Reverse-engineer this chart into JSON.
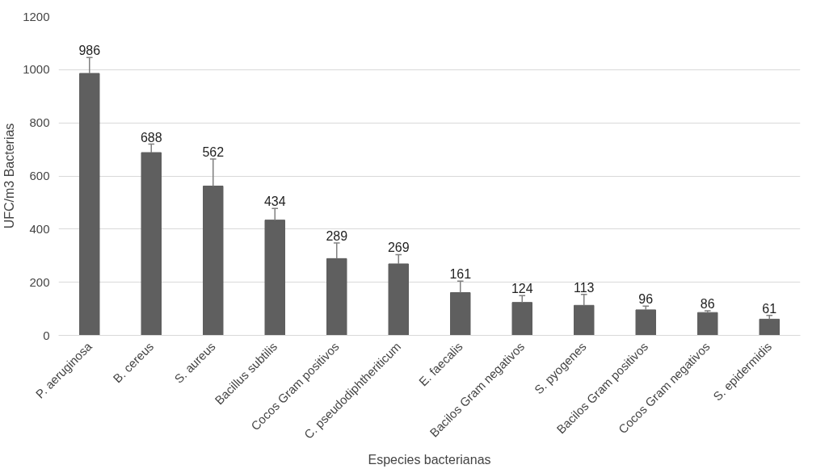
{
  "chart_data": {
    "type": "bar",
    "xlabel": "Especies bacterianas",
    "ylabel": "UFC/m3 Bacterias",
    "categories": [
      "P. aeruginosa",
      "B. cereus",
      "S. aureus",
      "Bacillus subtilis",
      "Cocos Gram positivos",
      "C. pseudodiphtheriticum",
      "E. faecalis",
      "Bacilos Gram negativos",
      "S. pyogenes",
      "Bacilos Gram positivos",
      "Cocos Gram negativos",
      "S. epidermidis"
    ],
    "values": [
      986,
      688,
      562,
      434,
      289,
      269,
      161,
      124,
      113,
      96,
      86,
      61
    ],
    "errors": [
      [
        986,
        1046
      ],
      [
        688,
        720
      ],
      [
        562,
        664
      ],
      [
        434,
        478
      ],
      [
        289,
        348
      ],
      [
        269,
        304
      ],
      [
        161,
        204
      ],
      [
        124,
        150
      ],
      [
        113,
        154
      ],
      [
        96,
        110
      ],
      [
        86,
        93
      ],
      [
        61,
        75
      ]
    ],
    "color": "#5f5f5f",
    "data_labels": true,
    "grid": "y",
    "ylim": [
      0,
      1200
    ],
    "yticks": [
      0,
      200,
      400,
      600,
      800,
      1000,
      1200
    ]
  }
}
